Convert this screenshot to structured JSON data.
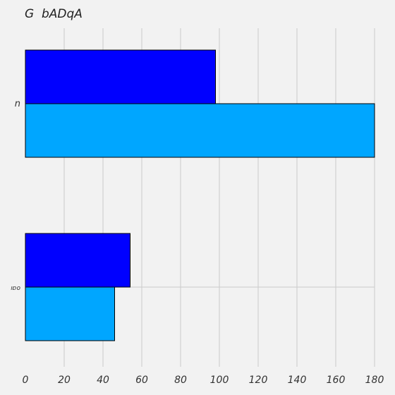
{
  "chart_data": {
    "type": "bar",
    "orientation": "horizontal",
    "title": "G  bADqA",
    "xlabel": "",
    "ylabel": "",
    "categories": [
      "n",
      "ıɒo"
    ],
    "series": [
      {
        "values": [
          98,
          54
        ],
        "color": "#0000ff"
      },
      {
        "values": [
          180,
          46
        ],
        "color": "#00a6ff"
      }
    ],
    "xlim": [
      0,
      180
    ],
    "xticks": [
      0,
      20,
      40,
      60,
      80,
      100,
      120,
      140,
      160,
      180
    ],
    "grid": true,
    "legend": "none"
  }
}
